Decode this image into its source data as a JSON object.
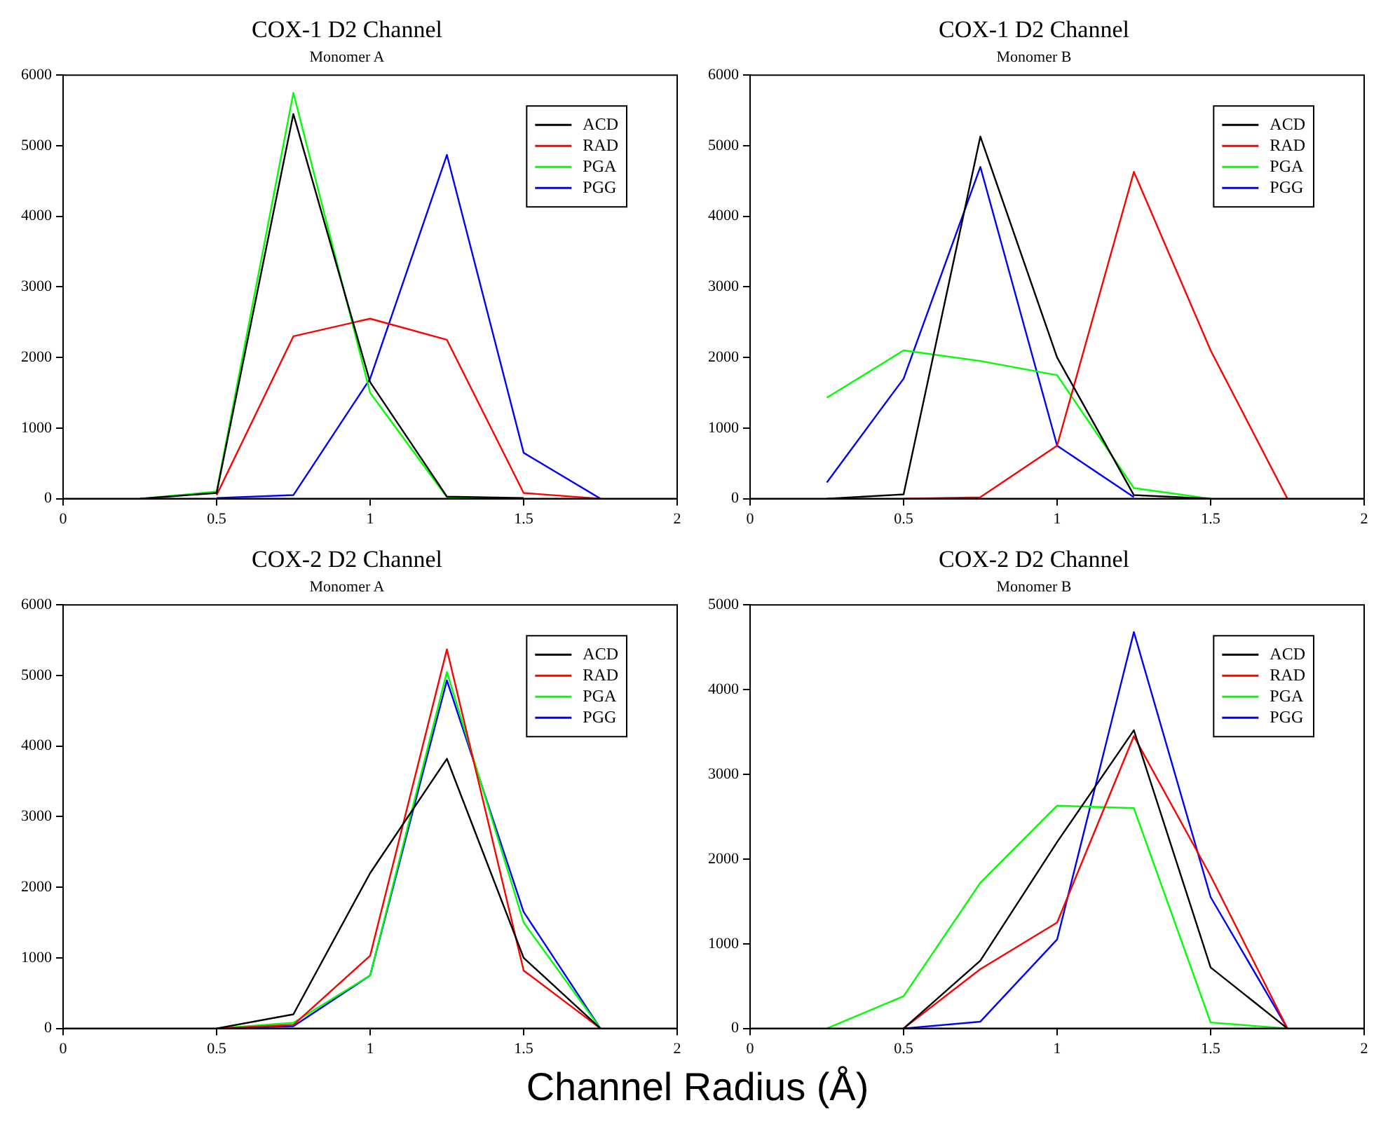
{
  "chart_data": [
    {
      "type": "line",
      "title": "COX-1 D2 Channel",
      "subtitle": "Monomer A",
      "x": [
        0.25,
        0.5,
        0.75,
        1,
        1.25,
        1.5,
        1.75
      ],
      "xlim": [
        0,
        2
      ],
      "xticks": [
        0,
        0.5,
        1,
        1.5,
        2
      ],
      "ylim": [
        0,
        6000
      ],
      "yticks": [
        0,
        1000,
        2000,
        3000,
        4000,
        5000,
        6000
      ],
      "legend": "top right",
      "marker": "none",
      "line_style": "solid",
      "series": [
        {
          "name": "ACD",
          "color": "#000000",
          "values": [
            0,
            80,
            5450,
            1650,
            30,
            10,
            null
          ]
        },
        {
          "name": "RAD",
          "color": "#ff0000",
          "values": [
            null,
            50,
            2300,
            2550,
            2250,
            80,
            0
          ]
        },
        {
          "name": "PGA",
          "color": "#00ff00",
          "values": [
            0,
            100,
            5750,
            1500,
            20,
            0,
            null
          ]
        },
        {
          "name": "PGG",
          "color": "#0000ff",
          "values": [
            null,
            10,
            50,
            1700,
            4870,
            650,
            0
          ]
        }
      ]
    },
    {
      "type": "line",
      "title": "COX-1 D2 Channel",
      "subtitle": "Monomer B",
      "x": [
        0.25,
        0.5,
        0.75,
        1,
        1.25,
        1.5,
        1.75
      ],
      "xlim": [
        0,
        2
      ],
      "xticks": [
        0,
        0.5,
        1,
        1.5,
        2
      ],
      "ylim": [
        0,
        6000
      ],
      "yticks": [
        0,
        1000,
        2000,
        3000,
        4000,
        5000,
        6000
      ],
      "legend": "top right",
      "marker": "none",
      "line_style": "solid",
      "series": [
        {
          "name": "ACD",
          "color": "#000000",
          "values": [
            0,
            60,
            5130,
            2000,
            50,
            0,
            null
          ]
        },
        {
          "name": "RAD",
          "color": "#ff0000",
          "values": [
            null,
            0,
            20,
            750,
            4630,
            2100,
            0
          ]
        },
        {
          "name": "PGA",
          "color": "#00ff00",
          "values": [
            1430,
            2100,
            1950,
            1750,
            150,
            0,
            null
          ]
        },
        {
          "name": "PGG",
          "color": "#0000ff",
          "values": [
            230,
            1700,
            4700,
            750,
            20,
            null,
            null
          ]
        }
      ]
    },
    {
      "type": "line",
      "title": "COX-2 D2 Channel",
      "subtitle": "Monomer A",
      "x": [
        0.5,
        0.75,
        1,
        1.25,
        1.5,
        1.75
      ],
      "xlim": [
        0,
        2
      ],
      "xticks": [
        0,
        0.5,
        1,
        1.5,
        2
      ],
      "ylim": [
        0,
        6000
      ],
      "yticks": [
        0,
        1000,
        2000,
        3000,
        4000,
        5000,
        6000
      ],
      "legend": "top right",
      "marker": "none",
      "line_style": "solid",
      "series": [
        {
          "name": "ACD",
          "color": "#000000",
          "values": [
            0,
            200,
            2200,
            3820,
            1000,
            0
          ]
        },
        {
          "name": "RAD",
          "color": "#ff0000",
          "values": [
            0,
            50,
            1030,
            5370,
            820,
            0
          ]
        },
        {
          "name": "PGA",
          "color": "#00ff00",
          "values": [
            0,
            80,
            750,
            5050,
            1500,
            0
          ]
        },
        {
          "name": "PGG",
          "color": "#0000ff",
          "values": [
            0,
            30,
            750,
            4930,
            1650,
            0
          ]
        }
      ]
    },
    {
      "type": "line",
      "title": "COX-2 D2 Channel",
      "subtitle": "Monomer B",
      "xlabel": "Channel Radius (Å)",
      "x": [
        0.25,
        0.5,
        0.75,
        1,
        1.25,
        1.5,
        1.75
      ],
      "xlim": [
        0,
        2
      ],
      "xticks": [
        0,
        0.5,
        1,
        1.5,
        2
      ],
      "ylim": [
        0,
        5000
      ],
      "yticks": [
        0,
        1000,
        2000,
        3000,
        4000,
        5000
      ],
      "legend": "top right",
      "marker": "none",
      "line_style": "solid",
      "series": [
        {
          "name": "ACD",
          "color": "#000000",
          "values": [
            null,
            0,
            800,
            2200,
            3520,
            720,
            0
          ]
        },
        {
          "name": "RAD",
          "color": "#ff0000",
          "values": [
            null,
            0,
            700,
            1250,
            3450,
            1800,
            0
          ]
        },
        {
          "name": "PGA",
          "color": "#00ff00",
          "values": [
            0,
            380,
            1720,
            2630,
            2600,
            70,
            0
          ]
        },
        {
          "name": "PGG",
          "color": "#0000ff",
          "values": [
            null,
            0,
            80,
            1050,
            4680,
            1550,
            0
          ]
        }
      ]
    }
  ]
}
